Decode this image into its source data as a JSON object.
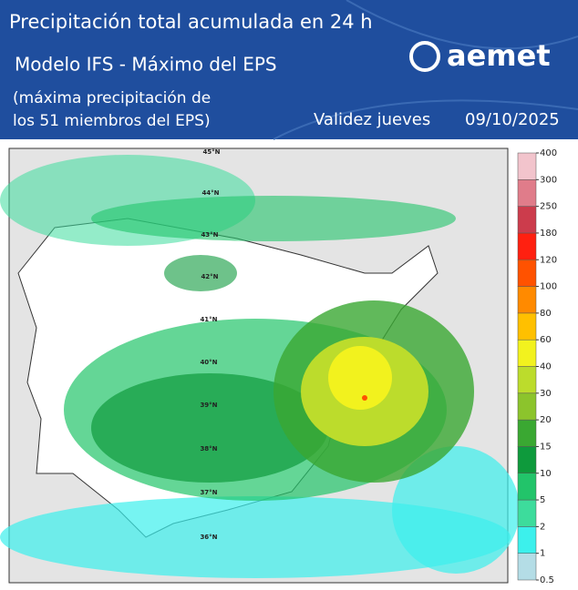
{
  "header": {
    "title": "Precipitación total acumulada en 24 h",
    "model": "Modelo IFS  - Máximo del EPS",
    "note_line1": "(máxima precipitación de",
    "note_line2": "los 51 miembros del EPS)",
    "validity_label": "Validez  jueves",
    "validity_date": "09/10/2025",
    "logo": "aemet"
  },
  "map": {
    "latitude_labels": [
      "45°N",
      "44°N",
      "43°N",
      "42°N",
      "41°N",
      "40°N",
      "39°N",
      "38°N",
      "37°N",
      "36°N"
    ]
  },
  "colorbar": {
    "levels": [
      0.5,
      1,
      2,
      5,
      10,
      15,
      20,
      30,
      40,
      60,
      80,
      100,
      120,
      180,
      250,
      300,
      400
    ],
    "colors": [
      "#b4dde6",
      "#3cf0ec",
      "#3ddc9c",
      "#22c46a",
      "#0e9a3c",
      "#3aa832",
      "#8cc42c",
      "#bcdc2c",
      "#f2f21e",
      "#ffc000",
      "#ff8a00",
      "#ff5200",
      "#ff2010",
      "#cc3c4c",
      "#e07c8a",
      "#f2c4cc"
    ]
  }
}
